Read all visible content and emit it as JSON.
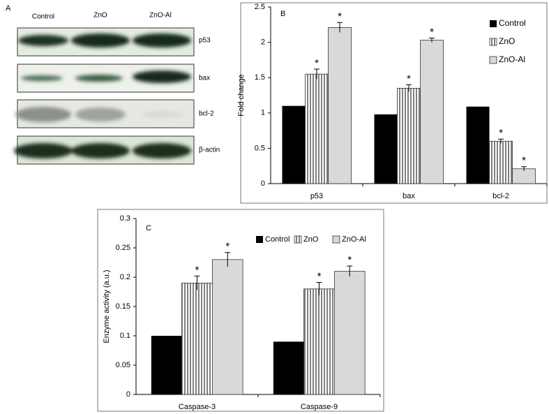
{
  "blot": {
    "panel": "A",
    "lanes": [
      "Control",
      "ZnO",
      "ZnO-Al"
    ],
    "rows": [
      "p53",
      "bax",
      "bcl-2",
      "β-actin"
    ]
  },
  "chart_data": [
    {
      "type": "bar",
      "panel": "B",
      "y_label": "Fold change",
      "categories": [
        "p53",
        "bax",
        "bcl-2"
      ],
      "ylim": [
        0,
        2.5
      ],
      "yticks": [
        0,
        0.5,
        1,
        1.5,
        2,
        2.5
      ],
      "legend": "upper right",
      "series": [
        {
          "name": "Control",
          "color": "#000000",
          "values": [
            1.1,
            0.98,
            1.09
          ]
        },
        {
          "name": "ZnO",
          "color": "#808080",
          "pattern": "vertical-stripes",
          "values": [
            1.55,
            1.35,
            0.6
          ],
          "errors": [
            0.07,
            0.05,
            0.03
          ],
          "annotation": "*"
        },
        {
          "name": "ZnO-Al",
          "color": "#d9d9d9",
          "values": [
            2.21,
            2.03,
            0.21
          ],
          "errors": [
            0.07,
            0.03,
            0.03
          ],
          "annotation": "*"
        }
      ]
    },
    {
      "type": "bar",
      "panel": "C",
      "y_label": "Enzyme activity (a.u.)",
      "categories": [
        "Caspase-3",
        "Caspase-9"
      ],
      "ylim": [
        0,
        0.3
      ],
      "yticks": [
        0,
        0.05,
        0.1,
        0.15,
        0.2,
        0.25,
        0.3
      ],
      "legend": "top",
      "series": [
        {
          "name": "Control",
          "color": "#000000",
          "values": [
            0.1,
            0.09
          ]
        },
        {
          "name": "ZnO",
          "color": "#808080",
          "pattern": "vertical-stripes",
          "values": [
            0.19,
            0.18
          ],
          "errors": [
            0.012,
            0.011
          ],
          "annotation": "*"
        },
        {
          "name": "ZnO-Al",
          "color": "#d9d9d9",
          "values": [
            0.23,
            0.21
          ],
          "errors": [
            0.012,
            0.009
          ],
          "annotation": "*"
        }
      ]
    }
  ]
}
